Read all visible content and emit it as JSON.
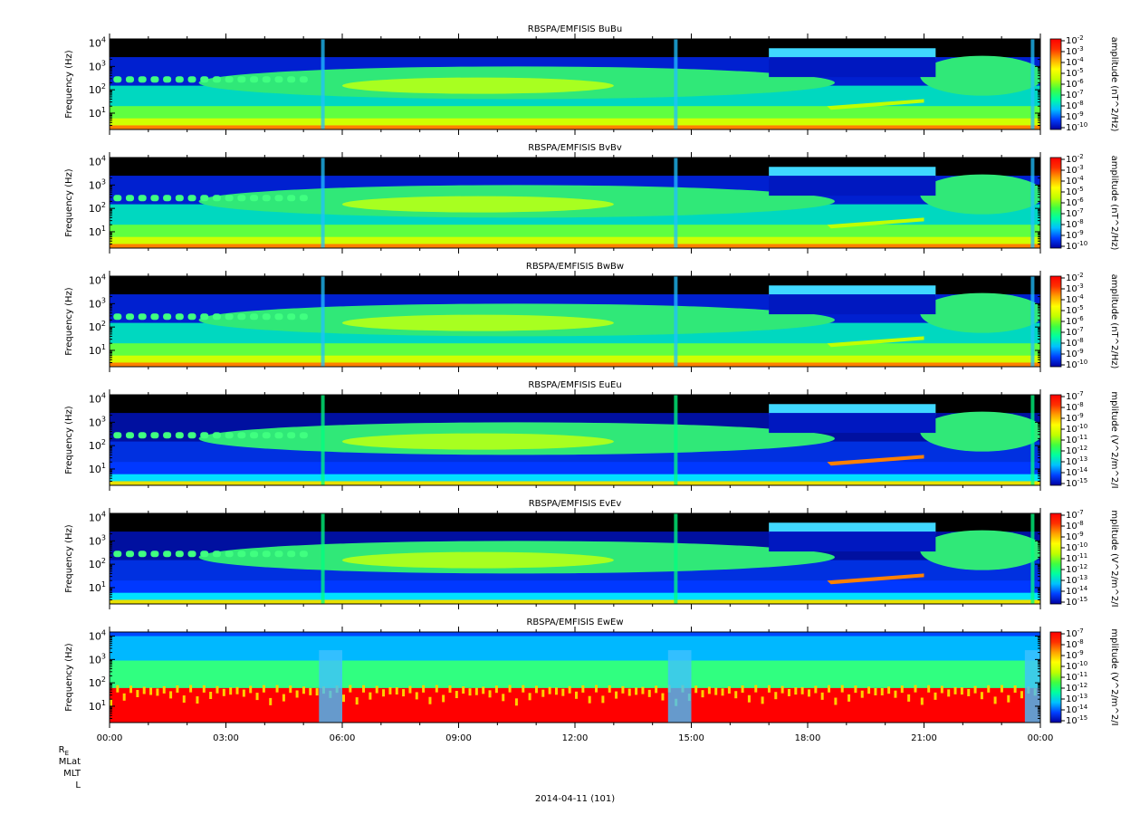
{
  "chart_data": {
    "type": "heatmap",
    "date_label": "2014-04-11 (101)",
    "x_tick_labels": [
      "00:00",
      "03:00",
      "06:00",
      "09:00",
      "12:00",
      "15:00",
      "18:00",
      "21:00",
      "00:00"
    ],
    "x_range_hours": [
      0,
      24
    ],
    "ephemeris_labels": {
      "re_main": "R",
      "re_sub": "E",
      "mlat": "MLat",
      "mlt": "MLT",
      "l": "L"
    },
    "colormap": [
      "#0000a0",
      "#0040ff",
      "#00c0ff",
      "#00ffa0",
      "#40ff40",
      "#c0ff00",
      "#ffff00",
      "#ffa000",
      "#ff3000",
      "#ff0000"
    ],
    "panels": [
      {
        "title": "RBSPA/EMFISIS  BuBu",
        "ylabel": "Frequency (Hz)",
        "yscale": "log",
        "ylim": [
          2,
          15000
        ],
        "y_tick_exps": [
          "4",
          "3",
          "2",
          "1"
        ],
        "clabel": "amplitude (nT^2/Hz)",
        "c_tick_exps": [
          "-2",
          "-3",
          "-4",
          "-5",
          "-6",
          "-7",
          "-8",
          "-9",
          "-10"
        ],
        "kind": "b"
      },
      {
        "title": "RBSPA/EMFISIS  BvBv",
        "ylabel": "Frequency (Hz)",
        "yscale": "log",
        "ylim": [
          2,
          15000
        ],
        "y_tick_exps": [
          "4",
          "3",
          "2",
          "1"
        ],
        "clabel": "amplitude (nT^2/Hz)",
        "c_tick_exps": [
          "-2",
          "-3",
          "-4",
          "-5",
          "-6",
          "-7",
          "-8",
          "-9",
          "-10"
        ],
        "kind": "b"
      },
      {
        "title": "RBSPA/EMFISIS  BwBw",
        "ylabel": "Frequency (Hz)",
        "yscale": "log",
        "ylim": [
          2,
          15000
        ],
        "y_tick_exps": [
          "4",
          "3",
          "2",
          "1"
        ],
        "clabel": "amplitude (nT^2/Hz)",
        "c_tick_exps": [
          "-2",
          "-3",
          "-4",
          "-5",
          "-6",
          "-7",
          "-8",
          "-9",
          "-10"
        ],
        "kind": "b"
      },
      {
        "title": "RBSPA/EMFISIS  EuEu",
        "ylabel": "Frequency (Hz)",
        "yscale": "log",
        "ylim": [
          2,
          15000
        ],
        "y_tick_exps": [
          "4",
          "3",
          "2",
          "1"
        ],
        "clabel": "mplitude (V^2/m^2/I",
        "c_tick_exps": [
          "-7",
          "-8",
          "-9",
          "-10",
          "-11",
          "-12",
          "-13",
          "-14",
          "-15"
        ],
        "kind": "e"
      },
      {
        "title": "RBSPA/EMFISIS  EvEv",
        "ylabel": "Frequency (Hz)",
        "yscale": "log",
        "ylim": [
          2,
          15000
        ],
        "y_tick_exps": [
          "4",
          "3",
          "2",
          "1"
        ],
        "clabel": "mplitude (V^2/m^2/I",
        "c_tick_exps": [
          "-7",
          "-8",
          "-9",
          "-10",
          "-11",
          "-12",
          "-13",
          "-14",
          "-15"
        ],
        "kind": "e"
      },
      {
        "title": "RBSPA/EMFISIS  EwEw",
        "ylabel": "Frequency (Hz)",
        "yscale": "log",
        "ylim": [
          2,
          15000
        ],
        "y_tick_exps": [
          "4",
          "3",
          "2",
          "1"
        ],
        "clabel": "mplitude (V^2/m^2/I",
        "c_tick_exps": [
          "-7",
          "-8",
          "-9",
          "-10",
          "-11",
          "-12",
          "-13",
          "-14",
          "-15"
        ],
        "kind": "ew"
      }
    ]
  }
}
